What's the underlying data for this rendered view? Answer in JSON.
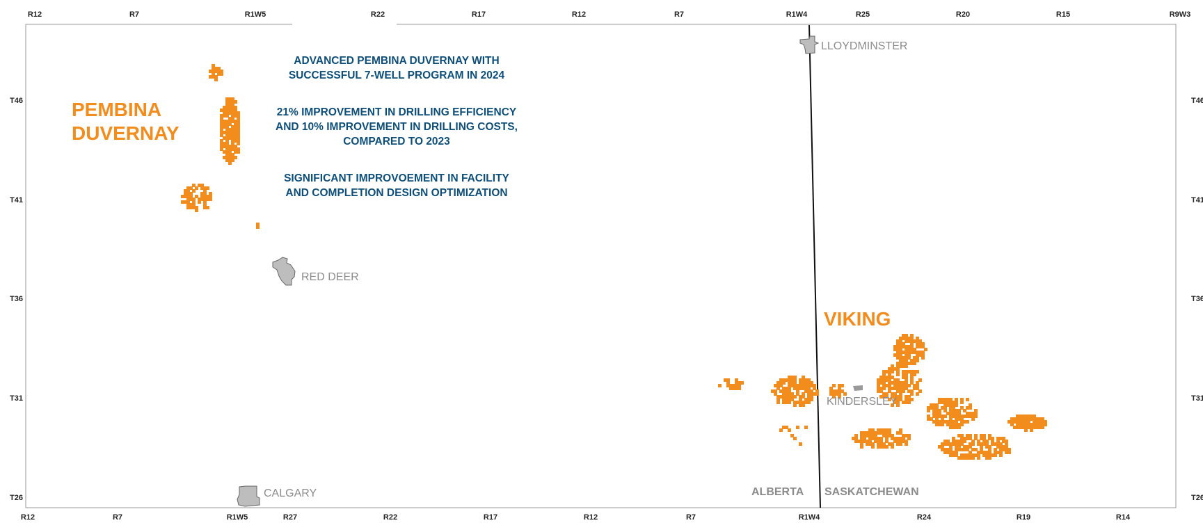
{
  "map": {
    "top_range_ticks": [
      "R12",
      "R7",
      "R1W5",
      "R22",
      "R17",
      "R12",
      "R7",
      "R1W4",
      "R25",
      "R20",
      "R15",
      "R9W3"
    ],
    "bottom_range_ticks": [
      "R12",
      "R7",
      "R1W5",
      "R27",
      "R22",
      "R17",
      "R12",
      "R7",
      "R1W4",
      "R24",
      "R19",
      "R14"
    ],
    "left_township_ticks": [
      "T46",
      "T41",
      "T36",
      "T31",
      "T26"
    ],
    "right_township_ticks": [
      "T46",
      "T41",
      "T36",
      "T31",
      "T26"
    ],
    "play_color": "#f28c1c",
    "city_color": "#bdbdbd",
    "callout_color": "#0d4f7a"
  },
  "callouts": {
    "line1": "ADVANCED PEMBINA DUVERNAY WITH SUCCESSFUL 7-WELL PROGRAM IN 2024",
    "line2": "21% IMPROVEMENT IN DRILLING EFFICIENCY AND 10% IMPROVEMENT IN DRILLING COSTS, COMPARED TO 2023",
    "line3": "SIGNIFICANT IMPROVOEMENT IN FACILITY AND COMPLETION DESIGN OPTIMIZATION"
  },
  "plays": {
    "pembina_line1": "PEMBINA",
    "pembina_line2": "DUVERNAY",
    "viking": "VIKING"
  },
  "cities": {
    "lloydminster": "LLOYDMINSTER",
    "red_deer": "RED DEER",
    "kindersley": "KINDERSLEY",
    "calgary": "CALGARY"
  },
  "provinces": {
    "alberta": "ALBERTA",
    "saskatchewan": "SASKATCHEWAN"
  }
}
